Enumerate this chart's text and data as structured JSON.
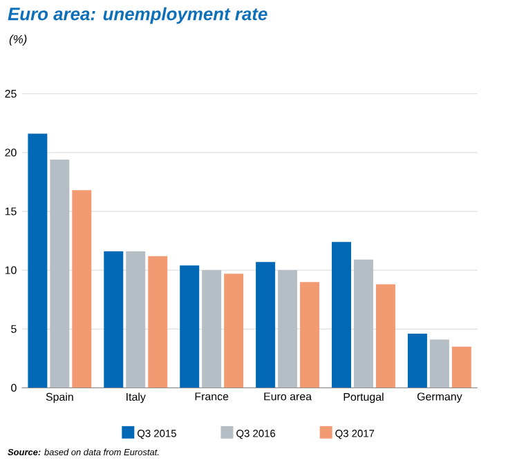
{
  "chart_data": {
    "type": "bar",
    "title": "Euro area: unemployment rate",
    "ylabel": "(%)",
    "categories": [
      "Spain",
      "Italy",
      "France",
      "Euro area",
      "Portugal",
      "Germany"
    ],
    "series": [
      {
        "name": "Q3 2015",
        "color": "#0068b4",
        "values": [
          21.6,
          11.6,
          10.4,
          10.7,
          12.4,
          4.6
        ]
      },
      {
        "name": "Q3 2016",
        "color": "#b5bec4",
        "values": [
          19.4,
          11.6,
          10.0,
          10.0,
          10.9,
          4.1
        ]
      },
      {
        "name": "Q3 2017",
        "color": "#f29b72",
        "values": [
          16.8,
          11.2,
          9.7,
          9.0,
          8.8,
          3.5
        ]
      }
    ],
    "ylim": [
      0,
      25
    ],
    "yticks": [
      0,
      5,
      10,
      15,
      20,
      25
    ],
    "grid": "y",
    "legend": "bottom",
    "annotations": [
      "**Source:** based on data from Eurostat."
    ]
  }
}
